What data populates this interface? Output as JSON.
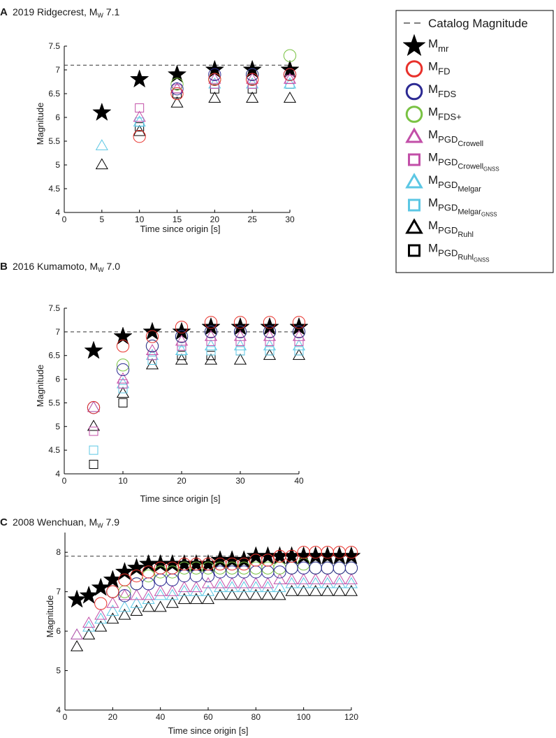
{
  "colors": {
    "mr": "#000000",
    "fd": "#e8312b",
    "fds": "#2c2a93",
    "fdsplus": "#79c243",
    "pgd_crowell": "#c24fa8",
    "pgd_crowell_gnss": "#c24fa8",
    "pgd_melgar": "#5cc7e4",
    "pgd_melgar_gnss": "#5cc7e4",
    "pgd_ruhl": "#000000",
    "pgd_ruhl_gnss": "#000000",
    "catalog": "#333333"
  },
  "legend": {
    "catalog": "Catalog Magnitude",
    "items": [
      {
        "key": "mr",
        "marker": "star-icon",
        "base": "M",
        "sub": "mr",
        "subsub": ""
      },
      {
        "key": "fd",
        "marker": "circle-icon",
        "base": "M",
        "sub": "FD",
        "subsub": ""
      },
      {
        "key": "fds",
        "marker": "circle-icon",
        "base": "M",
        "sub": "FDS",
        "subsub": ""
      },
      {
        "key": "fdsplus",
        "marker": "circle-icon",
        "base": "M",
        "sub": "FDS+",
        "subsub": ""
      },
      {
        "key": "pgd_crowell",
        "marker": "triangle-icon",
        "base": "M",
        "sub": "PGD",
        "subsub": "Crowell"
      },
      {
        "key": "pgd_crowell_gnss",
        "marker": "square-icon",
        "base": "M",
        "sub": "PGD",
        "subsub": "Crowell",
        "subsubsub": "GNSS"
      },
      {
        "key": "pgd_melgar",
        "marker": "triangle-icon",
        "base": "M",
        "sub": "PGD",
        "subsub": "Melgar"
      },
      {
        "key": "pgd_melgar_gnss",
        "marker": "square-icon",
        "base": "M",
        "sub": "PGD",
        "subsub": "Melgar",
        "subsubsub": "GNSS"
      },
      {
        "key": "pgd_ruhl",
        "marker": "triangle-icon",
        "base": "M",
        "sub": "PGD",
        "subsub": "Ruhl"
      },
      {
        "key": "pgd_ruhl_gnss",
        "marker": "square-icon",
        "base": "M",
        "sub": "PGD",
        "subsub": "Ruhl",
        "subsubsub": "GNSS"
      }
    ]
  },
  "chart_data": [
    {
      "type": "scatter",
      "letter": "A",
      "title_prefix": "2019 Ridgecrest, M",
      "title_sub": "W",
      "title_suffix": " 7.1",
      "xlabel": "Time since origin [s]",
      "ylabel": "Magnitude",
      "xlim": [
        0,
        30
      ],
      "ylim": [
        4,
        7.5
      ],
      "xticks": [
        0,
        5,
        10,
        15,
        20,
        25,
        30
      ],
      "yticks": [
        4,
        4.5,
        5,
        5.5,
        6,
        6.5,
        7,
        7.5
      ],
      "catalog_magnitude": 7.1,
      "series": [
        {
          "key": "mr",
          "x": [
            5,
            10,
            15,
            20,
            25,
            30
          ],
          "y": [
            6.1,
            6.8,
            6.9,
            7.0,
            7.0,
            7.0
          ]
        },
        {
          "key": "fd",
          "x": [
            10,
            15,
            20,
            25,
            30
          ],
          "y": [
            5.6,
            6.5,
            6.8,
            6.8,
            6.9
          ]
        },
        {
          "key": "fds",
          "x": [
            15,
            20,
            25,
            30
          ],
          "y": [
            6.6,
            6.9,
            6.9,
            6.9
          ]
        },
        {
          "key": "fdsplus",
          "x": [
            15,
            20,
            25,
            30
          ],
          "y": [
            6.7,
            6.8,
            6.9,
            7.3
          ]
        },
        {
          "key": "pgd_crowell",
          "x": [
            10,
            15,
            20,
            25,
            30
          ],
          "y": [
            6.0,
            6.6,
            6.8,
            6.8,
            6.8
          ]
        },
        {
          "key": "pgd_crowell_gnss",
          "x": [
            10,
            15,
            20,
            25,
            30
          ],
          "y": [
            6.2,
            6.6,
            6.7,
            6.7,
            6.8
          ]
        },
        {
          "key": "pgd_melgar",
          "x": [
            5,
            10,
            15,
            20,
            25,
            30
          ],
          "y": [
            5.4,
            5.9,
            6.6,
            6.7,
            6.7,
            6.7
          ]
        },
        {
          "key": "pgd_melgar_gnss",
          "x": [
            10,
            15,
            20,
            25,
            30
          ],
          "y": [
            5.9,
            6.6,
            6.7,
            6.7,
            6.7
          ]
        },
        {
          "key": "pgd_ruhl",
          "x": [
            5,
            10,
            15,
            20,
            25,
            30
          ],
          "y": [
            5.0,
            5.7,
            6.3,
            6.4,
            6.4,
            6.4
          ]
        },
        {
          "key": "pgd_ruhl_gnss",
          "x": [
            10,
            15,
            20,
            25,
            30
          ],
          "y": [
            5.8,
            6.5,
            6.6,
            6.6,
            6.7
          ]
        }
      ]
    },
    {
      "type": "scatter",
      "letter": "B",
      "title_prefix": "2016 Kumamoto, M",
      "title_sub": "W",
      "title_suffix": " 7.0",
      "xlabel": "Time since origin [s]",
      "ylabel": "Magnitude",
      "xlim": [
        0,
        40
      ],
      "ylim": [
        4,
        7.5
      ],
      "xticks": [
        0,
        10,
        20,
        30,
        40
      ],
      "yticks": [
        4,
        4.5,
        5,
        5.5,
        6,
        6.5,
        7,
        7.5
      ],
      "catalog_magnitude": 7.0,
      "series": [
        {
          "key": "mr",
          "x": [
            5,
            10,
            15,
            20,
            25,
            30,
            35,
            40
          ],
          "y": [
            6.6,
            6.9,
            7.0,
            7.0,
            7.1,
            7.1,
            7.1,
            7.1
          ]
        },
        {
          "key": "fd",
          "x": [
            5,
            10,
            15,
            20,
            25,
            30,
            35,
            40
          ],
          "y": [
            5.4,
            6.7,
            6.9,
            7.1,
            7.2,
            7.2,
            7.2,
            7.2
          ]
        },
        {
          "key": "fds",
          "x": [
            5,
            10,
            15,
            20,
            25,
            30,
            35,
            40
          ],
          "y": [
            5.4,
            6.2,
            6.7,
            6.9,
            7.0,
            7.0,
            7.0,
            7.0
          ]
        },
        {
          "key": "fdsplus",
          "x": [
            10,
            15,
            20,
            25,
            30,
            35,
            40
          ],
          "y": [
            6.3,
            6.7,
            6.9,
            7.0,
            7.0,
            7.0,
            7.0
          ]
        },
        {
          "key": "pgd_crowell",
          "x": [
            5,
            10,
            15,
            20,
            25,
            30,
            35,
            40
          ],
          "y": [
            5.4,
            6.0,
            6.6,
            6.8,
            6.9,
            6.9,
            6.9,
            6.9
          ]
        },
        {
          "key": "pgd_crowell_gnss",
          "x": [
            5,
            10,
            15,
            20,
            25,
            30,
            35,
            40
          ],
          "y": [
            4.9,
            5.9,
            6.5,
            6.7,
            6.8,
            6.8,
            6.8,
            6.8
          ]
        },
        {
          "key": "pgd_melgar",
          "x": [
            5,
            10,
            15,
            20,
            25,
            30,
            35,
            40
          ],
          "y": [
            5.4,
            5.9,
            6.5,
            6.6,
            6.7,
            6.7,
            6.7,
            6.7
          ]
        },
        {
          "key": "pgd_melgar_gnss",
          "x": [
            5,
            10,
            15,
            20,
            25,
            30,
            35,
            40
          ],
          "y": [
            4.5,
            5.8,
            6.4,
            6.6,
            6.6,
            6.6,
            6.6,
            6.6
          ]
        },
        {
          "key": "pgd_ruhl",
          "x": [
            5,
            10,
            15,
            20,
            25,
            30,
            35,
            40
          ],
          "y": [
            5.0,
            5.7,
            6.3,
            6.4,
            6.4,
            6.4,
            6.5,
            6.5
          ]
        },
        {
          "key": "pgd_ruhl_gnss",
          "x": [
            5,
            10,
            15,
            20,
            25,
            30,
            35,
            40
          ],
          "y": [
            4.2,
            5.5,
            6.4,
            6.5,
            6.5,
            6.6,
            6.6,
            6.6
          ]
        }
      ]
    },
    {
      "type": "scatter",
      "letter": "C",
      "title_prefix": "2008 Wenchuan, M",
      "title_sub": "W",
      "title_suffix": " 7.9",
      "xlabel": "Time since origin [s]",
      "ylabel": "Magnitude",
      "xlim": [
        0,
        120
      ],
      "ylim": [
        4,
        8.5
      ],
      "xticks": [
        0,
        20,
        40,
        60,
        80,
        100,
        120
      ],
      "yticks": [
        4,
        5,
        6,
        7,
        8
      ],
      "catalog_magnitude": 7.9,
      "series": [
        {
          "key": "mr",
          "x": [
            5,
            10,
            15,
            20,
            25,
            30,
            35,
            40,
            45,
            50,
            55,
            60,
            65,
            70,
            75,
            80,
            85,
            90,
            95,
            100,
            105,
            110,
            115,
            120
          ],
          "y": [
            6.8,
            6.9,
            7.1,
            7.3,
            7.5,
            7.6,
            7.7,
            7.7,
            7.7,
            7.7,
            7.7,
            7.7,
            7.8,
            7.8,
            7.8,
            7.9,
            7.9,
            7.9,
            7.9,
            7.9,
            7.9,
            7.9,
            7.9,
            7.9
          ]
        },
        {
          "key": "fd",
          "x": [
            15,
            20,
            25,
            30,
            35,
            40,
            45,
            50,
            55,
            60,
            65,
            70,
            75,
            80,
            85,
            90,
            95,
            100,
            105,
            110,
            115,
            120
          ],
          "y": [
            6.7,
            7.0,
            7.3,
            7.4,
            7.5,
            7.6,
            7.6,
            7.7,
            7.7,
            7.7,
            7.7,
            7.7,
            7.7,
            7.8,
            7.8,
            7.9,
            7.9,
            8.0,
            8.0,
            8.0,
            8.0,
            8.0
          ]
        },
        {
          "key": "fds",
          "x": [
            20,
            25,
            30,
            35,
            40,
            45,
            50,
            55,
            60,
            65,
            70,
            75,
            80,
            85,
            90,
            95,
            100,
            105,
            110,
            115,
            120
          ],
          "y": [
            7.0,
            6.9,
            7.2,
            7.2,
            7.3,
            7.3,
            7.4,
            7.4,
            7.4,
            7.5,
            7.5,
            7.5,
            7.5,
            7.5,
            7.5,
            7.6,
            7.6,
            7.6,
            7.6,
            7.6,
            7.6
          ]
        },
        {
          "key": "fdsplus",
          "x": [
            20,
            25,
            30,
            35,
            40,
            45,
            50,
            55,
            60,
            65,
            70,
            75,
            80,
            85,
            90,
            95,
            100,
            105,
            110,
            115,
            120
          ],
          "y": [
            7.0,
            7.0,
            7.2,
            7.4,
            7.5,
            7.5,
            7.6,
            7.6,
            7.6,
            7.6,
            7.6,
            7.6,
            7.6,
            7.6,
            7.6,
            7.6,
            7.7,
            7.6,
            7.6,
            7.6,
            7.6
          ]
        },
        {
          "key": "pgd_crowell",
          "x": [
            5,
            10,
            15,
            20,
            25,
            30,
            35,
            40,
            45,
            50,
            55,
            60,
            65,
            70,
            75,
            80,
            85,
            90,
            95,
            100,
            105,
            110,
            115,
            120
          ],
          "y": [
            5.9,
            6.2,
            6.4,
            6.7,
            6.9,
            6.9,
            6.9,
            7.0,
            7.0,
            7.1,
            7.1,
            7.2,
            7.2,
            7.2,
            7.2,
            7.2,
            7.2,
            7.3,
            7.3,
            7.3,
            7.3,
            7.3,
            7.3,
            7.3
          ]
        },
        {
          "key": "pgd_melgar",
          "x": [
            5,
            10,
            15,
            20,
            25,
            30,
            35,
            40,
            45,
            50,
            55,
            60,
            65,
            70,
            75,
            80,
            85,
            90,
            95,
            100,
            105,
            110,
            115,
            120
          ],
          "y": [
            5.9,
            6.1,
            6.3,
            6.5,
            6.6,
            6.7,
            6.8,
            6.9,
            6.9,
            7.0,
            7.0,
            7.0,
            7.1,
            7.1,
            7.1,
            7.1,
            7.1,
            7.1,
            7.2,
            7.2,
            7.2,
            7.2,
            7.2,
            7.2
          ]
        },
        {
          "key": "pgd_ruhl",
          "x": [
            5,
            10,
            15,
            20,
            25,
            30,
            35,
            40,
            45,
            50,
            55,
            60,
            65,
            70,
            75,
            80,
            85,
            90,
            95,
            100,
            105,
            110,
            115,
            120
          ],
          "y": [
            5.6,
            5.9,
            6.1,
            6.3,
            6.4,
            6.5,
            6.6,
            6.6,
            6.7,
            6.8,
            6.8,
            6.8,
            6.9,
            6.9,
            6.9,
            6.9,
            6.9,
            6.9,
            7.0,
            7.0,
            7.0,
            7.0,
            7.0,
            7.0
          ]
        }
      ]
    }
  ]
}
